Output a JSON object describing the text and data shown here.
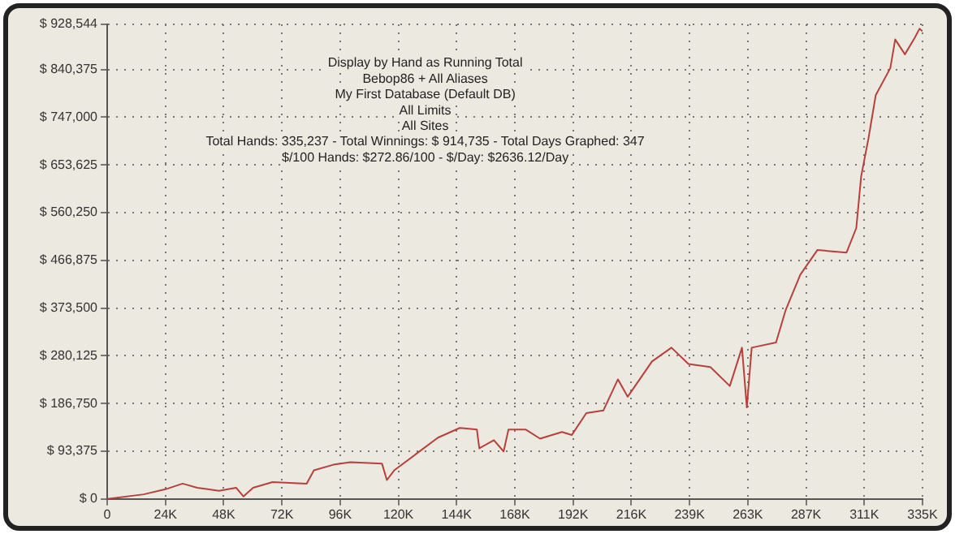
{
  "chart_data": {
    "type": "line",
    "title": "Display by Hand as Running Total",
    "annotations": [
      "Bebop86 + All Aliases",
      "My First Database (Default DB)",
      "All Limits",
      "All Sites",
      "Total Hands: 335,237 - Total Winnings: $ 914,735 - Total Days Graphed: 347",
      "$/100 Hands: $272.86/100 - $/Day: $2636.12/Day"
    ],
    "x": [
      0,
      15000,
      24000,
      31000,
      37000,
      46000,
      53000,
      56000,
      60000,
      68000,
      82000,
      85000,
      93000,
      100000,
      113000,
      115000,
      118000,
      127000,
      136000,
      145000,
      152000,
      153000,
      159000,
      163000,
      165000,
      172000,
      178000,
      187000,
      191000,
      197000,
      204000,
      210000,
      214000,
      224000,
      232000,
      239000,
      248000,
      256000,
      261000,
      263000,
      265000,
      275000,
      279000,
      285000,
      292000,
      304000,
      308000,
      310000,
      313000,
      316000,
      322000,
      324000,
      328000,
      332000,
      334000,
      335237
    ],
    "series": [
      {
        "color": "#b8403c",
        "values": [
          0,
          9000,
          19000,
          30000,
          22000,
          16000,
          22000,
          5000,
          22000,
          33000,
          30000,
          56000,
          67000,
          72000,
          69000,
          37000,
          56000,
          88000,
          120000,
          139000,
          136000,
          99000,
          115000,
          93000,
          136000,
          136000,
          118000,
          131000,
          125000,
          168000,
          173000,
          234000,
          200000,
          269000,
          296000,
          264000,
          258000,
          221000,
          296000,
          179000,
          296000,
          306000,
          370000,
          439000,
          487000,
          482000,
          530000,
          631000,
          705000,
          790000,
          843000,
          899000,
          870000,
          902000,
          920000,
          915000
        ]
      }
    ],
    "xlim": [
      0,
      335237
    ],
    "xticks": [
      0,
      {
        "value": 23945.5,
        "label": "24K"
      },
      {
        "value": 47891,
        "label": "48K"
      },
      {
        "value": 71836.5,
        "label": "72K"
      },
      {
        "value": 95782,
        "label": "96K"
      },
      {
        "value": 119727.5,
        "label": "120K"
      },
      {
        "value": 143673,
        "label": "144K"
      },
      {
        "value": 167618.5,
        "label": "168K"
      },
      {
        "value": 191564,
        "label": "192K"
      },
      {
        "value": 215509.5,
        "label": "216K"
      },
      {
        "value": 239455,
        "label": "239K"
      },
      {
        "value": 263400.5,
        "label": "263K"
      },
      {
        "value": 287346,
        "label": "287K"
      },
      {
        "value": 311291.5,
        "label": "311K"
      },
      {
        "value": 335237,
        "label": "335K"
      }
    ],
    "ylim": [
      0,
      928544
    ],
    "yticks": [
      {
        "value": 0,
        "label": "$ 0"
      },
      {
        "value": 93375,
        "label": "$ 93,375"
      },
      {
        "value": 186750,
        "label": "$ 186,750"
      },
      {
        "value": 280125,
        "label": "$ 280,125"
      },
      {
        "value": 373500,
        "label": "$ 373,500"
      },
      {
        "value": 466875,
        "label": "$ 466,875"
      },
      {
        "value": 560250,
        "label": "$ 560,250"
      },
      {
        "value": 653625,
        "label": "$ 653,625"
      },
      {
        "value": 747000,
        "label": "$ 747,000"
      },
      {
        "value": 840375,
        "label": "$ 840,375"
      },
      {
        "value": 928544,
        "label": "$ 928,544"
      }
    ],
    "grid": true,
    "line_style": "solid",
    "marker": "none",
    "legend": false
  }
}
